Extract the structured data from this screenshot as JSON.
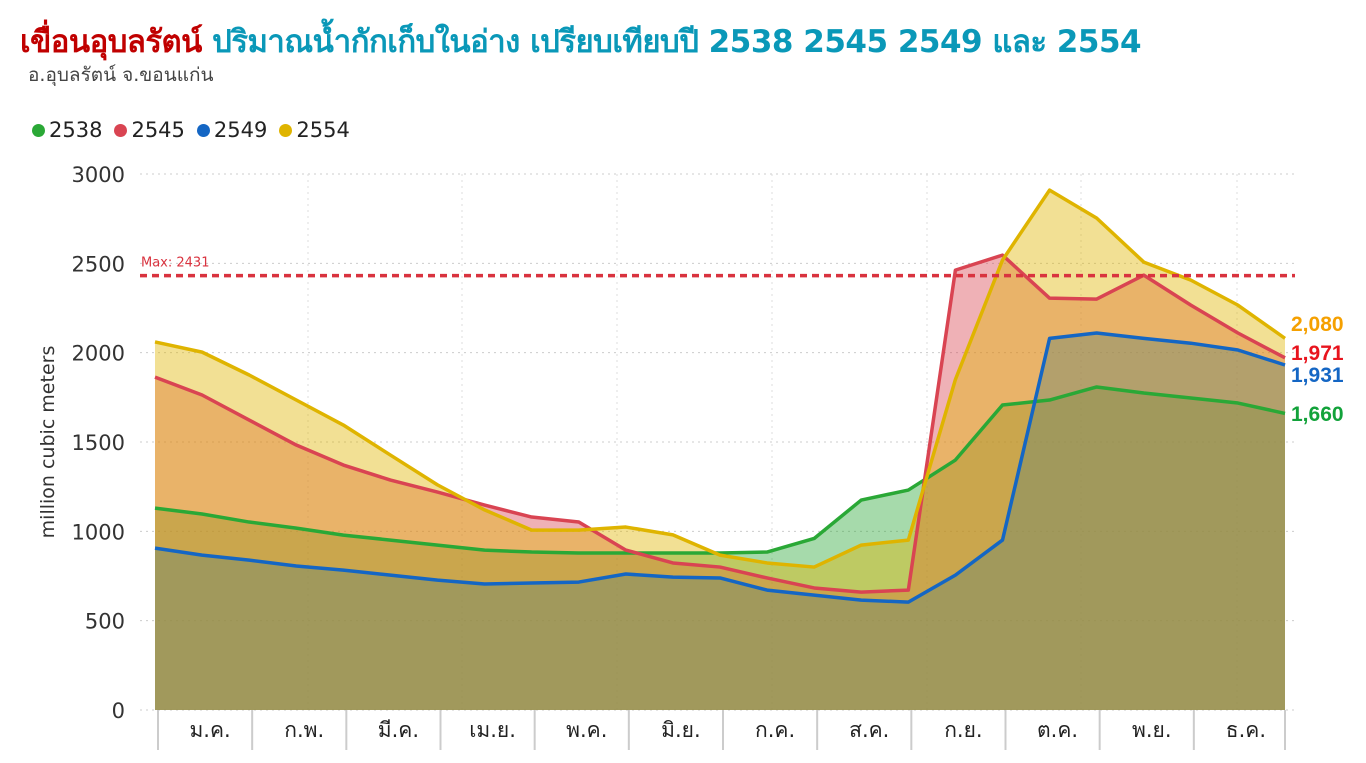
{
  "title": {
    "dam": "เขื่อนอุบลรัตน์",
    "rest": "ปริมาณน้ำกักเก็บในอ่าง เปรียบเทียบปี 2538 2545 2549 และ 2554"
  },
  "subtitle": "อ.อุบลรัตน์ จ.ขอนแก่น",
  "chart_data": {
    "type": "area",
    "title": "เขื่อนอุบลรัตน์ ปริมาณน้ำกักเก็บในอ่าง เปรียบเทียบปี 2538 2545 2549 และ 2554",
    "xlabel": "",
    "ylabel": "million cubic meters",
    "ylim": [
      0,
      3000
    ],
    "yticks": [
      0,
      500,
      1000,
      1500,
      2000,
      2500,
      3000
    ],
    "categories": [
      "ม.ค.",
      "ก.พ.",
      "มี.ค.",
      "เม.ย.",
      "พ.ค.",
      "มิ.ย.",
      "ก.ค.",
      "ส.ค.",
      "ก.ย.",
      "ต.ค.",
      "พ.ย.",
      "ธ.ค."
    ],
    "x": [
      0,
      0.5,
      1,
      1.5,
      2,
      2.5,
      3,
      3.5,
      4,
      4.5,
      5,
      5.5,
      6,
      6.5,
      7,
      7.5,
      8,
      8.5,
      9,
      9.5,
      10,
      10.5,
      11,
      11.5,
      12
    ],
    "grid": true,
    "legend_position": "top-left",
    "reference_line": {
      "label": "Max: 2431",
      "value": 2431,
      "color": "#d9333f"
    },
    "series": [
      {
        "name": "2538",
        "color": "#2aa836",
        "end_label": "1,660",
        "end_color": "#12a23a",
        "values": [
          1130,
          1097,
          1052,
          1018,
          979,
          951,
          923,
          895,
          884,
          879,
          879,
          879,
          879,
          884,
          960,
          1175,
          1231,
          1399,
          1707,
          1735,
          1808,
          1774,
          1746,
          1718,
          1660
        ]
      },
      {
        "name": "2545",
        "color": "#d94452",
        "end_label": "1,971",
        "end_color": "#e8141e",
        "values": [
          1863,
          1763,
          1623,
          1483,
          1371,
          1287,
          1220,
          1147,
          1080,
          1052,
          895,
          823,
          800,
          739,
          683,
          660,
          671,
          2462,
          2546,
          2305,
          2300,
          2434,
          2266,
          2110,
          1971
        ]
      },
      {
        "name": "2549",
        "color": "#1466c4",
        "end_label": "1,931",
        "end_color": "#1466c4",
        "values": [
          906,
          867,
          839,
          806,
          783,
          755,
          727,
          705,
          711,
          716,
          761,
          744,
          739,
          671,
          643,
          615,
          604,
          755,
          951,
          2080,
          2110,
          2080,
          2053,
          2015,
          1931
        ]
      },
      {
        "name": "2554",
        "color": "#dfb400",
        "end_label": "2,080",
        "end_color": "#f5a000",
        "values": [
          2060,
          2003,
          1875,
          1735,
          1595,
          1427,
          1260,
          1120,
          1007,
          1007,
          1024,
          980,
          867,
          823,
          800,
          923,
          951,
          1850,
          2518,
          2910,
          2753,
          2507,
          2406,
          2266,
          2080
        ]
      }
    ]
  }
}
